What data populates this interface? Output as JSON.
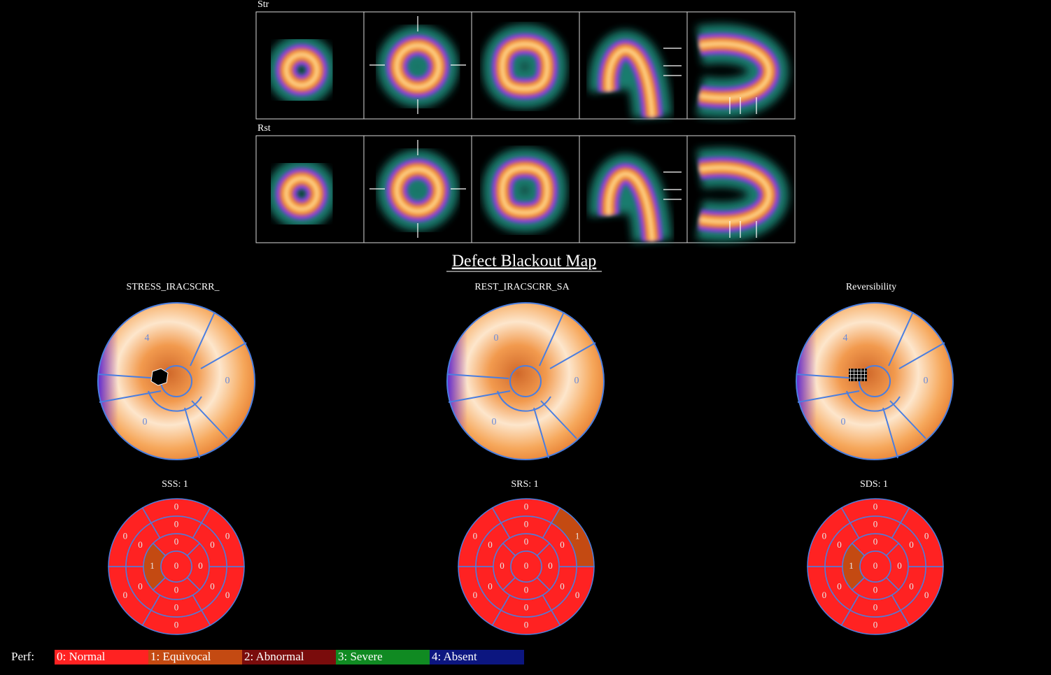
{
  "header": {
    "rows": [
      {
        "label": "Str"
      },
      {
        "label": "Rst"
      }
    ]
  },
  "section_title": "Defect Blackout Map",
  "polar_maps": [
    {
      "title": "STRESS_IRACSCRR_",
      "labels": [
        4,
        0,
        0
      ]
    },
    {
      "title": "REST_IRACSCRR_SA",
      "labels": [
        0,
        0,
        0
      ]
    },
    {
      "title": "Reversibility",
      "labels": [
        4,
        0,
        0
      ]
    }
  ],
  "score_maps": [
    {
      "title": "SSS: 1",
      "segments": [
        0,
        0,
        0,
        0,
        0,
        0,
        0,
        0,
        0,
        0,
        0,
        0,
        0,
        1,
        0,
        0,
        0
      ]
    },
    {
      "title": "SRS: 1",
      "segments": [
        0,
        0,
        0,
        0,
        0,
        1,
        0,
        0,
        0,
        0,
        0,
        0,
        0,
        0,
        0,
        0,
        0
      ]
    },
    {
      "title": "SDS: 1",
      "segments": [
        0,
        0,
        0,
        0,
        0,
        0,
        0,
        0,
        0,
        0,
        0,
        0,
        0,
        1,
        0,
        0,
        0
      ]
    }
  ],
  "legend": {
    "label": "Perf:",
    "items": [
      {
        "text": "0: Normal",
        "color": "#ff2222"
      },
      {
        "text": "1: Equivocal",
        "color": "#c44a12"
      },
      {
        "text": "2: Abnormal",
        "color": "#7a0c0c"
      },
      {
        "text": "3: Severe",
        "color": "#108a22"
      },
      {
        "text": "4: Absent",
        "color": "#0c1680"
      }
    ]
  }
}
